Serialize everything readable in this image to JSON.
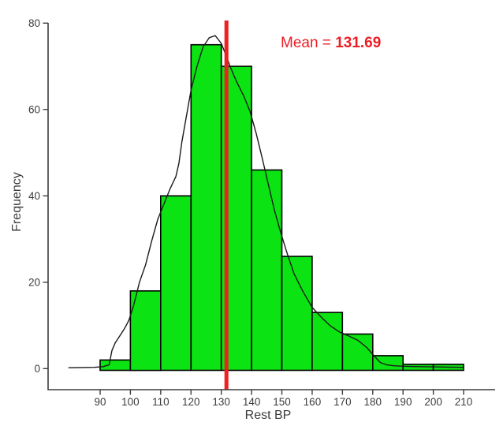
{
  "annotation": {
    "prefix": "Mean = ",
    "value": "131.69"
  },
  "colors": {
    "bar_fill": "#0ce312",
    "bar_stroke": "#000000",
    "density_curve": "#1a1a1a",
    "mean_line": "#ee2020",
    "annotation_text": "#ed1c24",
    "axis": "#3c3c3c"
  },
  "chart_data": {
    "type": "bar",
    "subtype": "histogram",
    "title": "",
    "xlabel": "Rest BP",
    "ylabel": "Frequency",
    "bin_start": 90,
    "bin_width": 10,
    "categories": [
      "90-100",
      "100-110",
      "110-120",
      "120-130",
      "130-140",
      "140-150",
      "150-160",
      "160-170",
      "170-180",
      "180-190",
      "190-200",
      "200-210"
    ],
    "values": [
      2,
      18,
      40,
      75,
      70,
      46,
      26,
      13,
      8,
      3,
      1,
      1
    ],
    "x_ticks": [
      90,
      100,
      110,
      120,
      130,
      140,
      150,
      160,
      170,
      180,
      190,
      200,
      210
    ],
    "y_ticks": [
      0,
      20,
      40,
      60,
      80
    ],
    "xlim": [
      78,
      212
    ],
    "ylim": [
      0,
      80
    ],
    "grid": false,
    "legend": "none",
    "mean": 131.69,
    "density_curve": [
      [
        79.5,
        0.2
      ],
      [
        84,
        0.25
      ],
      [
        88,
        0.3
      ],
      [
        91,
        0.45
      ],
      [
        93,
        0.9
      ],
      [
        93.9,
        4.2
      ],
      [
        95,
        6
      ],
      [
        96.5,
        7.6
      ],
      [
        98,
        9.2
      ],
      [
        99.5,
        11.2
      ],
      [
        101,
        14.5
      ],
      [
        103,
        20
      ],
      [
        105,
        24
      ],
      [
        107,
        29.5
      ],
      [
        109,
        34.5
      ],
      [
        111,
        38
      ],
      [
        113,
        41.5
      ],
      [
        115,
        44.5
      ],
      [
        116,
        47.5
      ],
      [
        117,
        52.5
      ],
      [
        118.5,
        58.5
      ],
      [
        120,
        64.5
      ],
      [
        122,
        70
      ],
      [
        124,
        74.5
      ],
      [
        126,
        76.6
      ],
      [
        128,
        77.1
      ],
      [
        130,
        75.3
      ],
      [
        131.7,
        72.3
      ],
      [
        133,
        69.8
      ],
      [
        135,
        66.5
      ],
      [
        137.5,
        63
      ],
      [
        139.5,
        59.5
      ],
      [
        141.5,
        54.5
      ],
      [
        143.5,
        48.8
      ],
      [
        145.5,
        42.8
      ],
      [
        147.5,
        36.8
      ],
      [
        149.5,
        31.8
      ],
      [
        151.5,
        27.2
      ],
      [
        154,
        22
      ],
      [
        157,
        17.8
      ],
      [
        160,
        14.2
      ],
      [
        163,
        11.9
      ],
      [
        166,
        9.9
      ],
      [
        169,
        8.5
      ],
      [
        172,
        7.6
      ],
      [
        175,
        6.6
      ],
      [
        178,
        4.9
      ],
      [
        180.5,
        2.9
      ],
      [
        182.5,
        1.4
      ],
      [
        184.5,
        0.9
      ],
      [
        187,
        0.65
      ],
      [
        190,
        0.55
      ],
      [
        195,
        0.45
      ],
      [
        200,
        0.4
      ],
      [
        205,
        0.35
      ],
      [
        210,
        0.3
      ]
    ]
  }
}
